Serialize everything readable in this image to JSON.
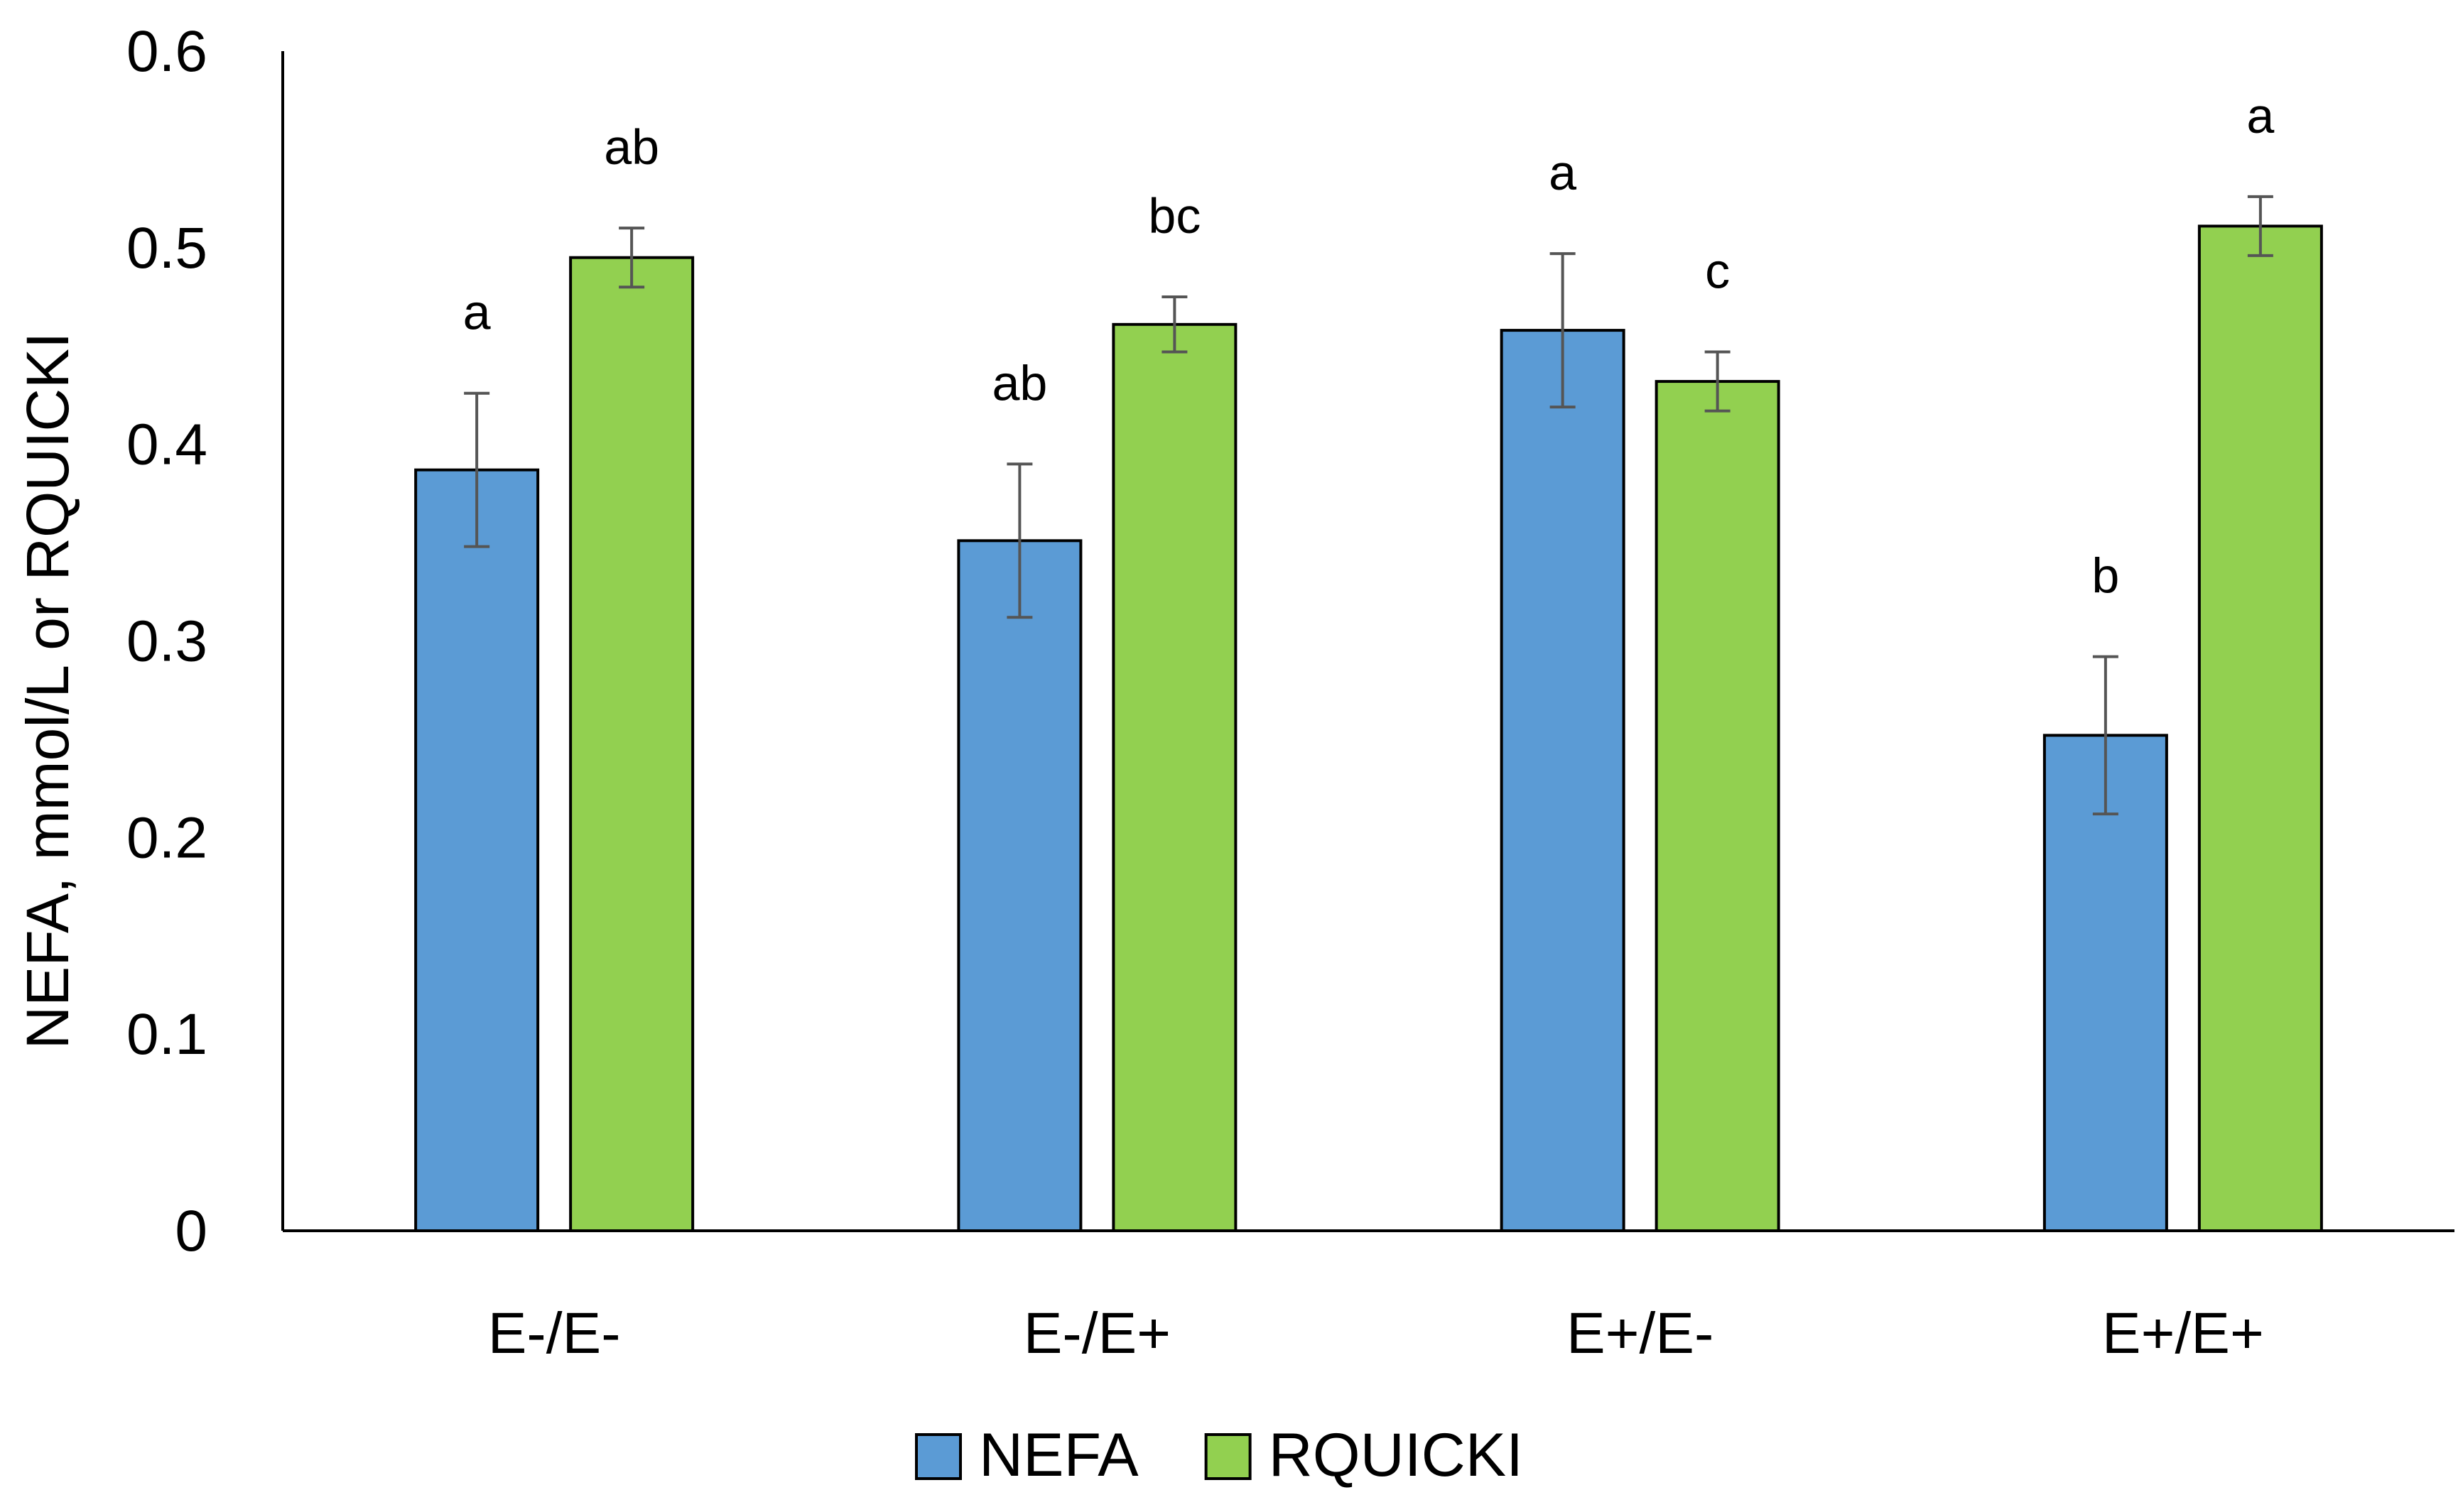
{
  "chart_data": {
    "type": "bar",
    "title": "",
    "xlabel": "",
    "ylabel": "NEFA, mmol/L or RQUICKI",
    "ylim": [
      0,
      0.6
    ],
    "yticks": [
      "0",
      "0.1",
      "0.2",
      "0.3",
      "0.4",
      "0.5",
      "0.6"
    ],
    "ytick_values": [
      0,
      0.1,
      0.2,
      0.3,
      0.4,
      0.5,
      0.6
    ],
    "grid": false,
    "legend_position": "bottom",
    "categories": [
      "E-/E-",
      "E-/E+",
      "E+/E-",
      "E+/E+"
    ],
    "series": [
      {
        "name": "NEFA",
        "color": "#5B9BD5",
        "values": [
          0.387,
          0.351,
          0.458,
          0.252
        ],
        "errors": [
          0.039,
          0.039,
          0.039,
          0.04
        ],
        "labels": [
          "a",
          "ab",
          "a",
          "b"
        ]
      },
      {
        "name": "RQUICKI",
        "color": "#92D050",
        "values": [
          0.495,
          0.461,
          0.432,
          0.511
        ],
        "errors": [
          0.015,
          0.014,
          0.015,
          0.015
        ],
        "labels": [
          "ab",
          "bc",
          "c",
          "a"
        ]
      }
    ]
  }
}
